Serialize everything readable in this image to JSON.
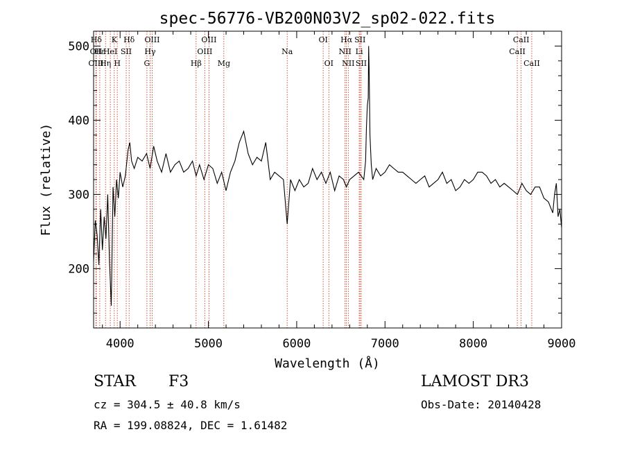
{
  "chart_data": {
    "type": "line",
    "title": "spec-56776-VB200N03V2_sp02-022.fits",
    "xlabel": "Wavelength (Å)",
    "ylabel": "Flux (relative)",
    "xlim": [
      3700,
      9000
    ],
    "ylim": [
      120,
      520
    ],
    "xticks": [
      4000,
      5000,
      6000,
      7000,
      8000,
      9000
    ],
    "yticks": [
      200,
      300,
      400,
      500
    ],
    "grid": false,
    "series": [
      {
        "x": [
          3700,
          3720,
          3740,
          3760,
          3780,
          3800,
          3820,
          3840,
          3860,
          3880,
          3900,
          3920,
          3940,
          3960,
          3980,
          4000,
          4030,
          4060,
          4090,
          4110,
          4130,
          4160,
          4200,
          4250,
          4300,
          4340,
          4380,
          4420,
          4470,
          4520,
          4570,
          4620,
          4670,
          4720,
          4770,
          4820,
          4861,
          4900,
          4950,
          5000,
          5050,
          5100,
          5150,
          5200,
          5250,
          5300,
          5350,
          5400,
          5450,
          5500,
          5550,
          5600,
          5650,
          5700,
          5750,
          5800,
          5850,
          5892,
          5930,
          5980,
          6030,
          6080,
          6130,
          6180,
          6230,
          6280,
          6330,
          6380,
          6430,
          6480,
          6530,
          6563,
          6600,
          6650,
          6700,
          6760,
          6780,
          6790,
          6800,
          6810,
          6815,
          6820,
          6830,
          6845,
          6860,
          6900,
          6950,
          7000,
          7050,
          7100,
          7150,
          7200,
          7250,
          7300,
          7350,
          7400,
          7450,
          7500,
          7550,
          7600,
          7650,
          7700,
          7750,
          7800,
          7850,
          7900,
          7950,
          8000,
          8050,
          8100,
          8150,
          8200,
          8250,
          8300,
          8350,
          8400,
          8450,
          8500,
          8550,
          8600,
          8650,
          8700,
          8750,
          8800,
          8850,
          8900,
          8920,
          8940,
          8960,
          8980,
          9000
        ],
        "y": [
          210,
          265,
          245,
          205,
          280,
          225,
          270,
          240,
          300,
          210,
          150,
          310,
          270,
          320,
          295,
          330,
          310,
          325,
          360,
          370,
          345,
          335,
          350,
          345,
          355,
          335,
          365,
          345,
          330,
          355,
          330,
          340,
          345,
          330,
          335,
          345,
          325,
          340,
          320,
          340,
          335,
          315,
          330,
          305,
          330,
          345,
          370,
          385,
          355,
          340,
          350,
          345,
          370,
          320,
          330,
          325,
          320,
          260,
          320,
          305,
          320,
          310,
          315,
          335,
          320,
          330,
          315,
          330,
          305,
          325,
          320,
          310,
          320,
          325,
          330,
          320,
          345,
          390,
          420,
          430,
          500,
          470,
          380,
          340,
          320,
          335,
          325,
          330,
          340,
          335,
          330,
          330,
          325,
          320,
          315,
          320,
          325,
          310,
          315,
          320,
          330,
          315,
          320,
          305,
          310,
          320,
          315,
          320,
          330,
          330,
          325,
          315,
          320,
          310,
          315,
          310,
          305,
          300,
          315,
          305,
          300,
          310,
          310,
          295,
          290,
          275,
          300,
          315,
          270,
          280,
          255
        ]
      }
    ],
    "lines": [
      {
        "label": "Hδ",
        "x": 3730,
        "row": 0
      },
      {
        "label": "OII",
        "x": 3727,
        "row": 1
      },
      {
        "label": "OIII",
        "x": 3727,
        "row": 2
      },
      {
        "label": "Hε",
        "x": 3770,
        "row": 1
      },
      {
        "label": "Hη",
        "x": 3835,
        "row": 2
      },
      {
        "label": "HeI",
        "x": 3889,
        "row": 1
      },
      {
        "label": "K",
        "x": 3934,
        "row": 0
      },
      {
        "label": "H",
        "x": 3968,
        "row": 2
      },
      {
        "label": "SII",
        "x": 4069,
        "row": 1
      },
      {
        "label": "Hδ",
        "x": 4102,
        "row": 0
      },
      {
        "label": "OIII",
        "x": 4363,
        "row": 0
      },
      {
        "label": "Hγ",
        "x": 4340,
        "row": 1
      },
      {
        "label": "G",
        "x": 4304,
        "row": 2
      },
      {
        "label": "Hβ",
        "x": 4861,
        "row": 2
      },
      {
        "label": "OIII",
        "x": 5007,
        "row": 0
      },
      {
        "label": "OIII",
        "x": 4959,
        "row": 1
      },
      {
        "label": "Mg",
        "x": 5175,
        "row": 2
      },
      {
        "label": "Na",
        "x": 5892,
        "row": 1
      },
      {
        "label": "OI",
        "x": 6300,
        "row": 0
      },
      {
        "label": "OI",
        "x": 6364,
        "row": 2
      },
      {
        "label": "Hα",
        "x": 6563,
        "row": 0
      },
      {
        "label": "NII",
        "x": 6548,
        "row": 1
      },
      {
        "label": "NII",
        "x": 6584,
        "row": 2
      },
      {
        "label": "SII",
        "x": 6717,
        "row": 0
      },
      {
        "label": "Li",
        "x": 6708,
        "row": 1
      },
      {
        "label": "SII",
        "x": 6731,
        "row": 2
      },
      {
        "label": "CaII",
        "x": 8542,
        "row": 0
      },
      {
        "label": "CaII",
        "x": 8498,
        "row": 1
      },
      {
        "label": "CaII",
        "x": 8662,
        "row": 2
      }
    ],
    "colors": {
      "spectrum": "#000000",
      "lines": "#cc2200"
    }
  },
  "info": {
    "object_class": "STAR",
    "subclass": "F3",
    "survey": "LAMOST DR3",
    "redshift": "cz = 304.5 ± 40.8 km/s",
    "obs_date": "Obs-Date: 20140428",
    "coords": "RA = 199.08824, DEC =   1.61482"
  }
}
